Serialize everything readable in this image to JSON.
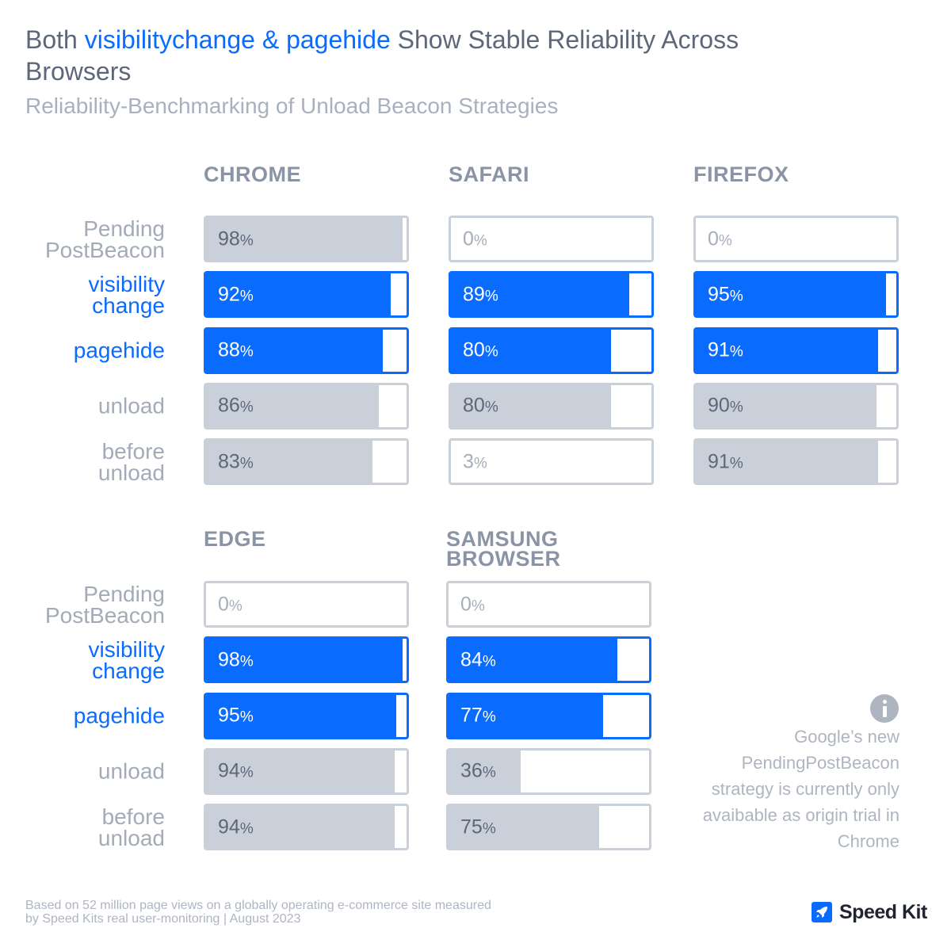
{
  "title": {
    "before": "Both ",
    "highlight": "visibilitychange & pagehide",
    "after": " Show Stable Reliability Across Browsers"
  },
  "subtitle": "Reliability-Benchmarking of Unload Beacon Strategies",
  "colors": {
    "accent": "#0a6cff",
    "grey_fill": "#c9d0da",
    "text_dark": "#5d677a",
    "text_light": "#a3abb8"
  },
  "unit": "%",
  "chart_data": {
    "type": "bar",
    "title": "Reliability-Benchmarking of Unload Beacon Strategies",
    "categories": [
      "PendingPostBeacon",
      "visibilitychange",
      "pagehide",
      "unload",
      "beforeunload"
    ],
    "category_labels": [
      "Pending\nPostBeacon",
      "visibility\nchange",
      "pagehide",
      "unload",
      "before\nunload"
    ],
    "highlighted": [
      false,
      true,
      true,
      false,
      false
    ],
    "xlim": [
      0,
      100
    ],
    "series": [
      {
        "name": "CHROME",
        "values": [
          98,
          92,
          88,
          86,
          83
        ]
      },
      {
        "name": "SAFARI",
        "values": [
          0,
          89,
          80,
          80,
          3
        ]
      },
      {
        "name": "FIREFOX",
        "values": [
          0,
          95,
          91,
          90,
          91
        ]
      },
      {
        "name": "EDGE",
        "values": [
          0,
          98,
          95,
          94,
          94
        ]
      },
      {
        "name": "SAMSUNG\nBROWSER",
        "values": [
          0,
          84,
          77,
          36,
          75
        ]
      }
    ]
  },
  "note": "Google’s new PendingPostBeacon strategy is currently only avaibable as origin trial in Chrome",
  "footnote": "Based on 52 million page views on a globally operating e-commerce site measured by Speed Kits real user-monitoring | August 2023",
  "brand": {
    "name": "Speed Kit",
    "icon": "rocket-icon"
  }
}
